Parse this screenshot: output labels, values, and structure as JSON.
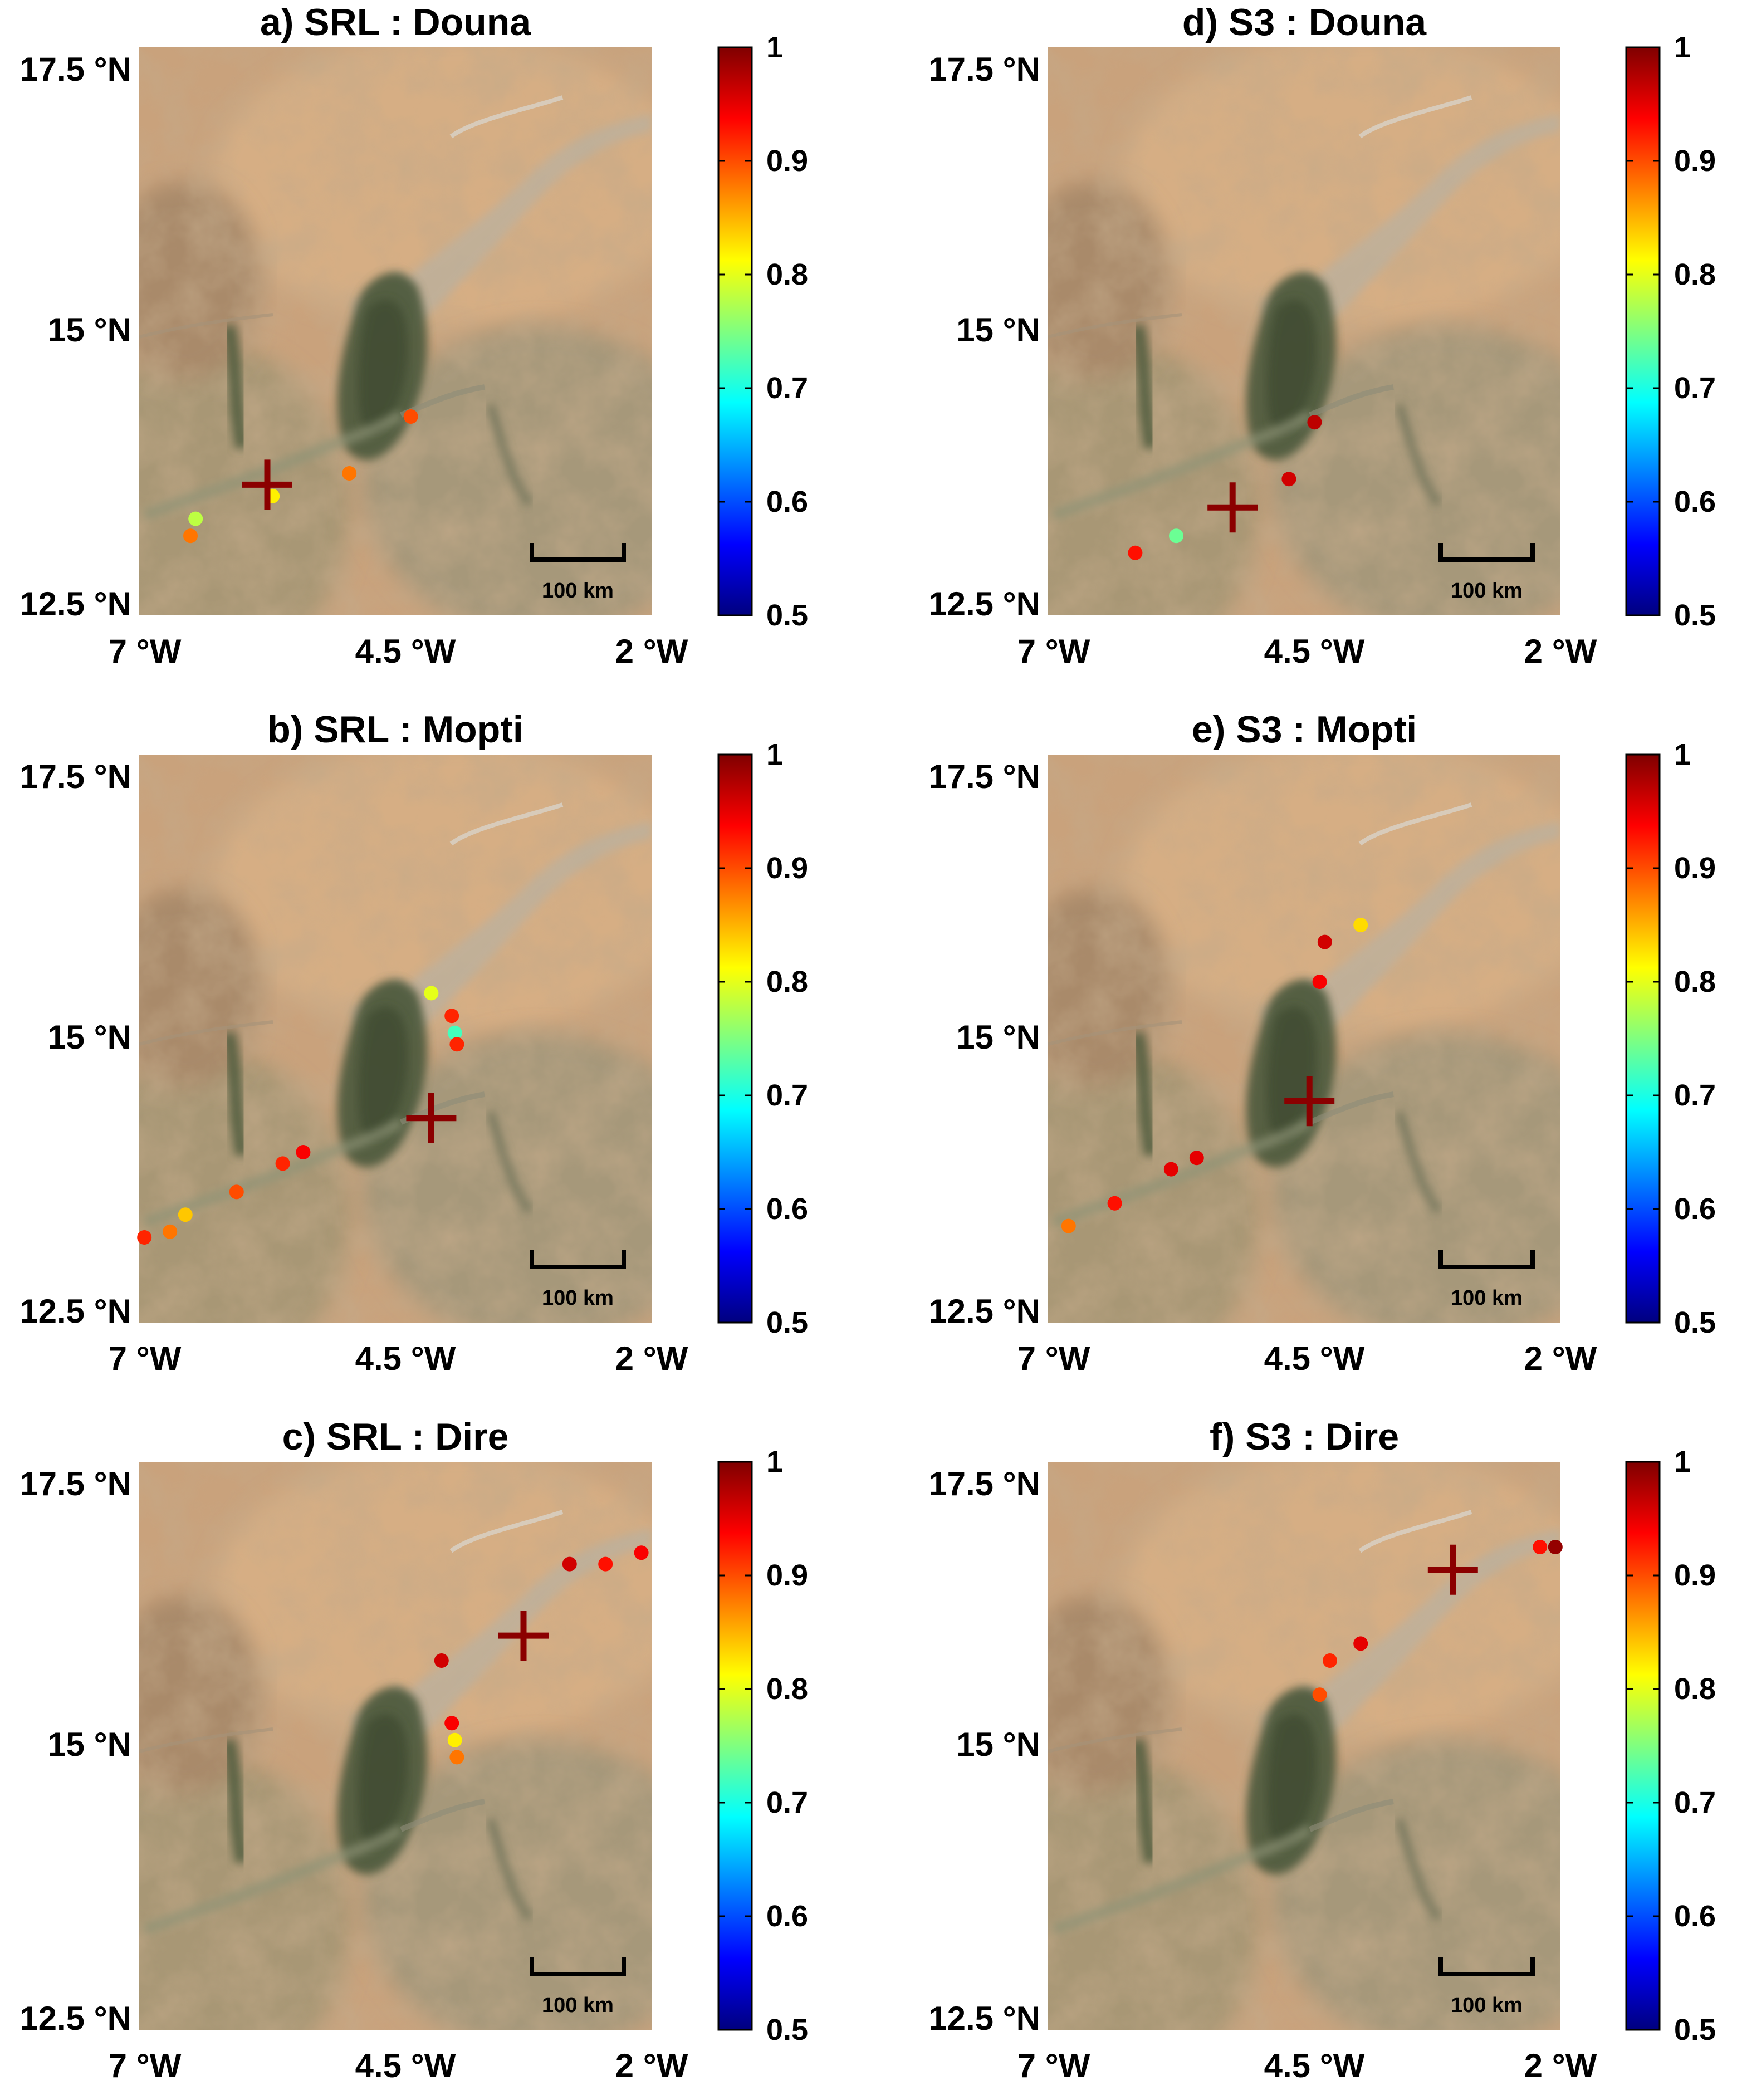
{
  "figure": {
    "panels": [
      {
        "id": "a",
        "title": "a) SRL : Douna",
        "stations": [
          {
            "lon": -6.45,
            "lat": 13.35,
            "corr": 0.78
          },
          {
            "lon": -6.5,
            "lat": 13.2,
            "corr": 0.88
          },
          {
            "lon": -5.7,
            "lat": 13.55,
            "corr": 0.82
          },
          {
            "lon": -4.95,
            "lat": 13.75,
            "corr": 0.88
          },
          {
            "lon": -4.35,
            "lat": 14.25,
            "corr": 0.9
          }
        ],
        "gauge": {
          "lon": -5.75,
          "lat": 13.65
        }
      },
      {
        "id": "b",
        "title": "b) SRL : Mopti",
        "stations": [
          {
            "lon": -6.95,
            "lat": 13.25,
            "corr": 0.92
          },
          {
            "lon": -6.7,
            "lat": 13.3,
            "corr": 0.88
          },
          {
            "lon": -6.55,
            "lat": 13.45,
            "corr": 0.84
          },
          {
            "lon": -6.05,
            "lat": 13.65,
            "corr": 0.9
          },
          {
            "lon": -5.6,
            "lat": 13.9,
            "corr": 0.92
          },
          {
            "lon": -5.4,
            "lat": 14.0,
            "corr": 0.94
          },
          {
            "lon": -4.15,
            "lat": 15.4,
            "corr": 0.8
          },
          {
            "lon": -3.95,
            "lat": 15.2,
            "corr": 0.92
          },
          {
            "lon": -3.92,
            "lat": 15.05,
            "corr": 0.72
          },
          {
            "lon": -3.9,
            "lat": 14.95,
            "corr": 0.92
          }
        ],
        "gauge": {
          "lon": -4.15,
          "lat": 14.3
        }
      },
      {
        "id": "c",
        "title": "c) SRL : Dire",
        "stations": [
          {
            "lon": -2.1,
            "lat": 16.7,
            "corr": 0.94
          },
          {
            "lon": -2.45,
            "lat": 16.6,
            "corr": 0.93
          },
          {
            "lon": -2.8,
            "lat": 16.6,
            "corr": 0.96
          },
          {
            "lon": -4.05,
            "lat": 15.75,
            "corr": 0.96
          },
          {
            "lon": -3.95,
            "lat": 15.2,
            "corr": 0.94
          },
          {
            "lon": -3.92,
            "lat": 15.05,
            "corr": 0.82
          },
          {
            "lon": -3.9,
            "lat": 14.9,
            "corr": 0.88
          }
        ],
        "gauge": {
          "lon": -3.25,
          "lat": 15.97
        }
      },
      {
        "id": "d",
        "title": "d) S3 : Douna",
        "stations": [
          {
            "lon": -6.15,
            "lat": 13.05,
            "corr": 0.93
          },
          {
            "lon": -5.75,
            "lat": 13.2,
            "corr": 0.74
          },
          {
            "lon": -4.65,
            "lat": 13.7,
            "corr": 0.96
          },
          {
            "lon": -4.4,
            "lat": 14.2,
            "corr": 0.97
          }
        ],
        "gauge": {
          "lon": -5.2,
          "lat": 13.45
        }
      },
      {
        "id": "e",
        "title": "e) S3 : Mopti",
        "stations": [
          {
            "lon": -6.8,
            "lat": 13.35,
            "corr": 0.88
          },
          {
            "lon": -6.35,
            "lat": 13.55,
            "corr": 0.93
          },
          {
            "lon": -5.8,
            "lat": 13.85,
            "corr": 0.95
          },
          {
            "lon": -5.55,
            "lat": 13.95,
            "corr": 0.95
          },
          {
            "lon": -4.35,
            "lat": 15.5,
            "corr": 0.94
          },
          {
            "lon": -4.3,
            "lat": 15.85,
            "corr": 0.96
          },
          {
            "lon": -3.95,
            "lat": 16.0,
            "corr": 0.83
          }
        ],
        "gauge": {
          "lon": -4.45,
          "lat": 14.45
        }
      },
      {
        "id": "f",
        "title": "f) S3 : Dire",
        "stations": [
          {
            "lon": -4.35,
            "lat": 15.45,
            "corr": 0.9
          },
          {
            "lon": -4.25,
            "lat": 15.75,
            "corr": 0.92
          },
          {
            "lon": -3.95,
            "lat": 15.9,
            "corr": 0.95
          },
          {
            "lon": -2.2,
            "lat": 16.75,
            "corr": 0.93
          },
          {
            "lon": -2.05,
            "lat": 16.75,
            "corr": 0.99
          }
        ],
        "gauge": {
          "lon": -3.05,
          "lat": 16.55
        }
      }
    ],
    "lat_labels": [
      "17.5 °N",
      "15 °N",
      "12.5 °N"
    ],
    "lon_labels": [
      "7 °W",
      "4.5 °W",
      "2 °W"
    ],
    "colorbar": {
      "ticks": [
        "1",
        "0.9",
        "0.8",
        "0.7",
        "0.6",
        "0.5"
      ],
      "min": 0.5,
      "max": 1.0,
      "colormap": "jet"
    },
    "scale_bar": {
      "label": "100 km",
      "km": 100
    },
    "gauge_color": "#8b0000",
    "extent": {
      "lon_min": -7,
      "lon_max": -2,
      "lat_min": 12.5,
      "lat_max": 17.5
    }
  }
}
